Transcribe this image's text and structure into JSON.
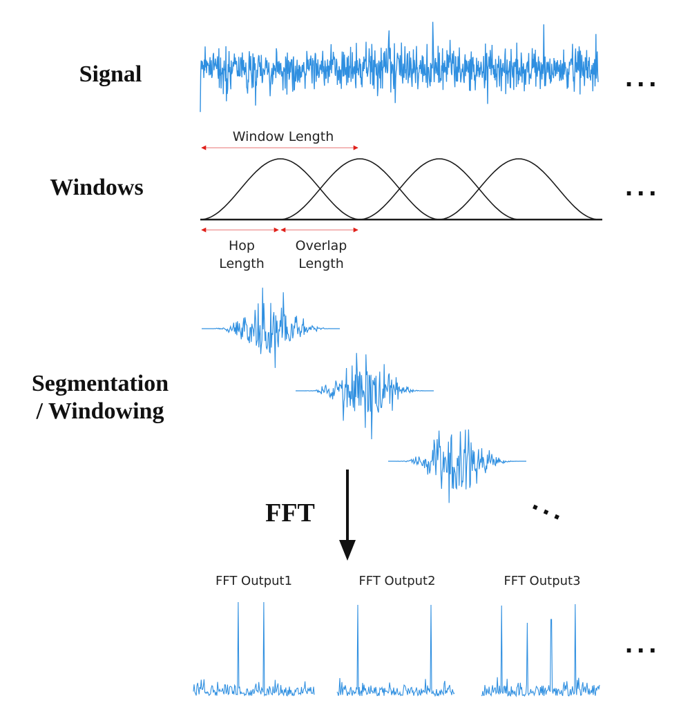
{
  "stages": {
    "signal": "Signal",
    "windows": "Windows",
    "segmentation_line1": "Segmentation",
    "segmentation_line2": "/ Windowing",
    "fft": "FFT"
  },
  "annotations": {
    "window_length": "Window Length",
    "hop_line1": "Hop",
    "hop_line2": "Length",
    "overlap_line1": "Overlap",
    "overlap_line2": "Length"
  },
  "outputs": [
    "FFT Output1",
    "FFT Output2",
    "FFT Output3"
  ],
  "ellipsis": "...",
  "colors": {
    "signal": "#2f8fe0",
    "arrow_red": "#e0201a",
    "line": "#1a1a1a"
  }
}
